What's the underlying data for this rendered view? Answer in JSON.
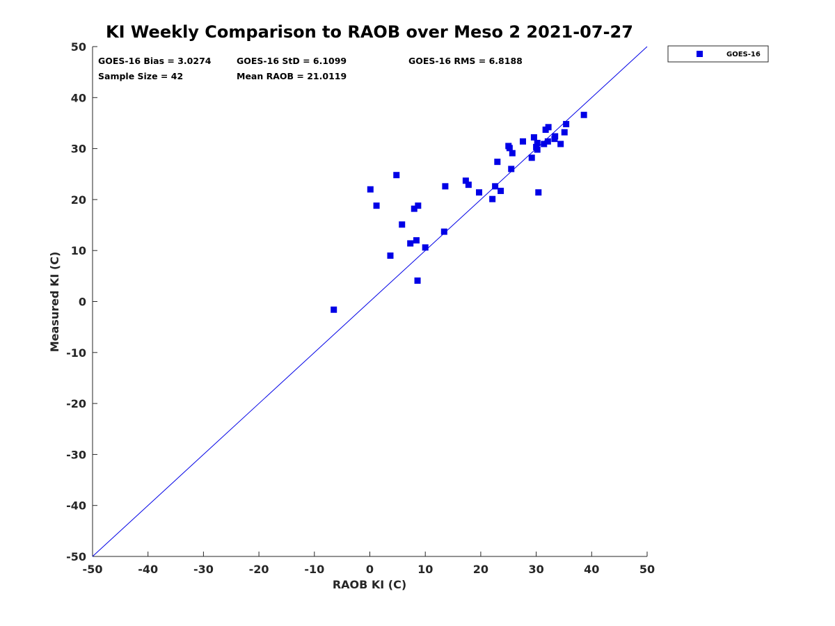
{
  "chart_data": {
    "type": "scatter",
    "title": "KI Weekly Comparison to RAOB over Meso 2 2021-07-27",
    "xlabel": "RAOB KI (C)",
    "ylabel": "Measured KI (C)",
    "xlim": [
      -50,
      50
    ],
    "ylim": [
      -50,
      50
    ],
    "xticks": [
      "-50",
      "-40",
      "-30",
      "-20",
      "-10",
      "0",
      "10",
      "20",
      "30",
      "40",
      "50"
    ],
    "yticks": [
      "-50",
      "-40",
      "-30",
      "-20",
      "-10",
      "0",
      "10",
      "20",
      "30",
      "40",
      "50"
    ],
    "reference_line": {
      "label": "1:1",
      "from": [
        -50,
        -50
      ],
      "to": [
        50,
        50
      ],
      "color": "#0000e6"
    },
    "stats": {
      "bias": "GOES-16 Bias = 3.0274",
      "std": "GOES-16 StD = 6.1099",
      "rms": "GOES-16 RMS = 6.8188",
      "sample_size": "Sample Size = 42",
      "mean_raob": "Mean RAOB = 21.0119"
    },
    "legend": {
      "label": "GOES-16",
      "placement": "outside-top-right"
    },
    "series": [
      {
        "name": "GOES-16",
        "color": "#0000e6",
        "marker": "square",
        "x": [
          -6.5,
          0.1,
          1.2,
          3.7,
          4.8,
          5.8,
          7.3,
          8.0,
          8.4,
          8.6,
          8.7,
          10.0,
          13.4,
          13.6,
          17.3,
          17.8,
          19.7,
          22.1,
          22.6,
          23.0,
          23.6,
          25.0,
          25.2,
          25.5,
          25.7,
          27.6,
          29.2,
          29.6,
          30.0,
          30.2,
          30.2,
          30.4,
          31.4,
          31.7,
          32.1,
          32.2,
          33.3,
          33.4,
          34.4,
          35.1,
          35.4,
          38.6
        ],
        "y": [
          -1.6,
          22.0,
          18.8,
          9.0,
          24.8,
          15.1,
          11.4,
          18.2,
          12.0,
          4.1,
          18.8,
          10.6,
          13.7,
          22.6,
          23.7,
          22.9,
          21.4,
          20.1,
          22.6,
          27.4,
          21.7,
          30.5,
          30.1,
          26.0,
          29.1,
          31.4,
          28.2,
          32.2,
          30.3,
          31.1,
          29.8,
          21.4,
          30.9,
          33.7,
          31.4,
          34.2,
          31.9,
          32.4,
          30.9,
          33.2,
          34.8,
          36.6
        ]
      }
    ]
  }
}
